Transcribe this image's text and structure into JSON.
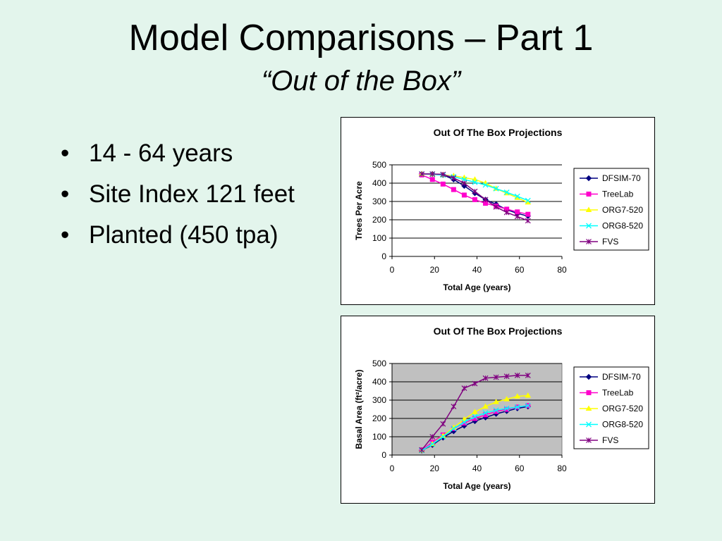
{
  "slide": {
    "title": "Model Comparisons – Part 1",
    "subtitle": "“Out of the Box”",
    "bullets": [
      "14 - 64 years",
      "Site Index 121 feet",
      "Planted (450 tpa)"
    ]
  },
  "chart_data": [
    {
      "type": "line",
      "title": "Out Of The Box Projections",
      "xlabel": "Total Age (years)",
      "ylabel": "Trees Per Acre",
      "xlim": [
        0,
        80
      ],
      "ylim": [
        0,
        500
      ],
      "xticks": [
        0,
        20,
        40,
        60,
        80
      ],
      "yticks": [
        0,
        100,
        200,
        300,
        400,
        500
      ],
      "grid": true,
      "plot_background": "#ffffff",
      "legend": "right",
      "series": [
        {
          "name": "DFSIM-70",
          "color": "#000080",
          "marker": "diamond",
          "x": [
            14,
            19,
            24,
            29,
            34,
            39,
            44,
            49,
            54,
            59,
            64
          ],
          "y": [
            450,
            450,
            445,
            420,
            385,
            345,
            310,
            285,
            255,
            235,
            220
          ]
        },
        {
          "name": "TreeLab",
          "color": "#ff00cc",
          "marker": "square",
          "x": [
            14,
            19,
            24,
            29,
            34,
            39,
            44,
            49,
            54,
            59,
            64
          ],
          "y": [
            445,
            420,
            395,
            365,
            335,
            310,
            290,
            275,
            258,
            243,
            230
          ]
        },
        {
          "name": "ORG7-520",
          "color": "#ffff00",
          "marker": "triangle",
          "x": [
            14,
            19,
            24,
            29,
            34,
            39,
            44,
            49,
            54,
            59,
            64
          ],
          "y": [
            450,
            448,
            445,
            440,
            430,
            420,
            400,
            370,
            345,
            320,
            295
          ]
        },
        {
          "name": "ORG8-520",
          "color": "#00ffff",
          "marker": "x",
          "x": [
            14,
            19,
            24,
            29,
            34,
            39,
            44,
            49,
            54,
            59,
            64
          ],
          "y": [
            450,
            448,
            444,
            435,
            420,
            405,
            390,
            370,
            350,
            328,
            305
          ]
        },
        {
          "name": "FVS",
          "color": "#800080",
          "marker": "star",
          "x": [
            14,
            19,
            24,
            29,
            34,
            39,
            44,
            49,
            54,
            59,
            64
          ],
          "y": [
            450,
            450,
            448,
            428,
            400,
            355,
            310,
            270,
            240,
            218,
            195
          ]
        }
      ]
    },
    {
      "type": "line",
      "title": "Out Of The Box Projections",
      "xlabel": "Total Age (years)",
      "ylabel": "Basal Area (ft²/acre)",
      "xlim": [
        0,
        80
      ],
      "ylim": [
        0,
        500
      ],
      "xticks": [
        0,
        20,
        40,
        60,
        80
      ],
      "yticks": [
        0,
        100,
        200,
        300,
        400,
        500
      ],
      "grid": true,
      "plot_background": "#c0c0c0",
      "legend": "right",
      "series": [
        {
          "name": "DFSIM-70",
          "color": "#000080",
          "marker": "diamond",
          "x": [
            14,
            19,
            24,
            29,
            34,
            39,
            44,
            49,
            54,
            59,
            64
          ],
          "y": [
            25,
            55,
            95,
            130,
            160,
            185,
            205,
            225,
            240,
            255,
            265
          ]
        },
        {
          "name": "TreeLab",
          "color": "#ff00cc",
          "marker": "square",
          "x": [
            14,
            19,
            24,
            29,
            34,
            39,
            44,
            49,
            54,
            59,
            64
          ],
          "y": [
            28,
            70,
            110,
            145,
            175,
            200,
            220,
            238,
            250,
            262,
            270
          ]
        },
        {
          "name": "ORG7-520",
          "color": "#ffff00",
          "marker": "triangle",
          "x": [
            14,
            19,
            24,
            29,
            34,
            39,
            44,
            49,
            54,
            59,
            64
          ],
          "y": [
            25,
            60,
            105,
            150,
            195,
            235,
            265,
            290,
            305,
            320,
            325
          ]
        },
        {
          "name": "ORG8-520",
          "color": "#00ffff",
          "marker": "x",
          "x": [
            14,
            19,
            24,
            29,
            34,
            39,
            44,
            49,
            54,
            59,
            64
          ],
          "y": [
            25,
            60,
            100,
            145,
            180,
            210,
            230,
            245,
            255,
            262,
            270
          ]
        },
        {
          "name": "FVS",
          "color": "#800080",
          "marker": "star",
          "x": [
            14,
            19,
            24,
            29,
            34,
            39,
            44,
            49,
            54,
            59,
            64
          ],
          "y": [
            28,
            100,
            170,
            265,
            365,
            390,
            420,
            425,
            430,
            435,
            435
          ]
        }
      ]
    }
  ]
}
